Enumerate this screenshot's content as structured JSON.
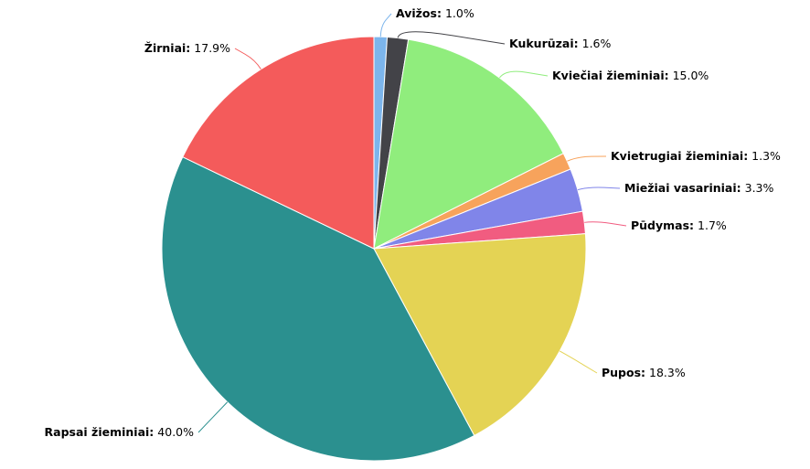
{
  "chart_data": {
    "type": "pie",
    "title": "",
    "start_angle_deg": 0,
    "direction": "clockwise",
    "slices": [
      {
        "name": "Avižos",
        "value": 1.0,
        "color": "#7cb5ec"
      },
      {
        "name": "Kukurūzai",
        "value": 1.6,
        "color": "#434348"
      },
      {
        "name": "Kviečiai žieminiai",
        "value": 15.0,
        "color": "#90ed7d"
      },
      {
        "name": "Kvietrugiai žieminiai",
        "value": 1.3,
        "color": "#f7a35c"
      },
      {
        "name": "Miežiai vasariniai",
        "value": 3.3,
        "color": "#8085e9"
      },
      {
        "name": "Pūdymas",
        "value": 1.7,
        "color": "#f15c80"
      },
      {
        "name": "Pupos",
        "value": 18.3,
        "color": "#e4d354"
      },
      {
        "name": "Rapsai žieminiai",
        "value": 40.0,
        "color": "#2b908f"
      },
      {
        "name": "Žirniai",
        "value": 17.9,
        "color": "#f45b5b"
      }
    ],
    "labels": [
      {
        "name": "Avižos",
        "text": "1.0%"
      },
      {
        "name": "Kukurūzai",
        "text": "1.6%"
      },
      {
        "name": "Kviečiai žieminiai",
        "text": "15.0%"
      },
      {
        "name": "Kvietrugiai žieminiai",
        "text": "1.3%"
      },
      {
        "name": "Miežiai vasariniai",
        "text": "3.3%"
      },
      {
        "name": "Pūdymas",
        "text": "1.7%"
      },
      {
        "name": "Pupos",
        "text": "18.3%"
      },
      {
        "name": "Rapsai žieminiai",
        "text": "40.0%"
      },
      {
        "name": "Žirniai",
        "text": "17.9%"
      }
    ]
  }
}
